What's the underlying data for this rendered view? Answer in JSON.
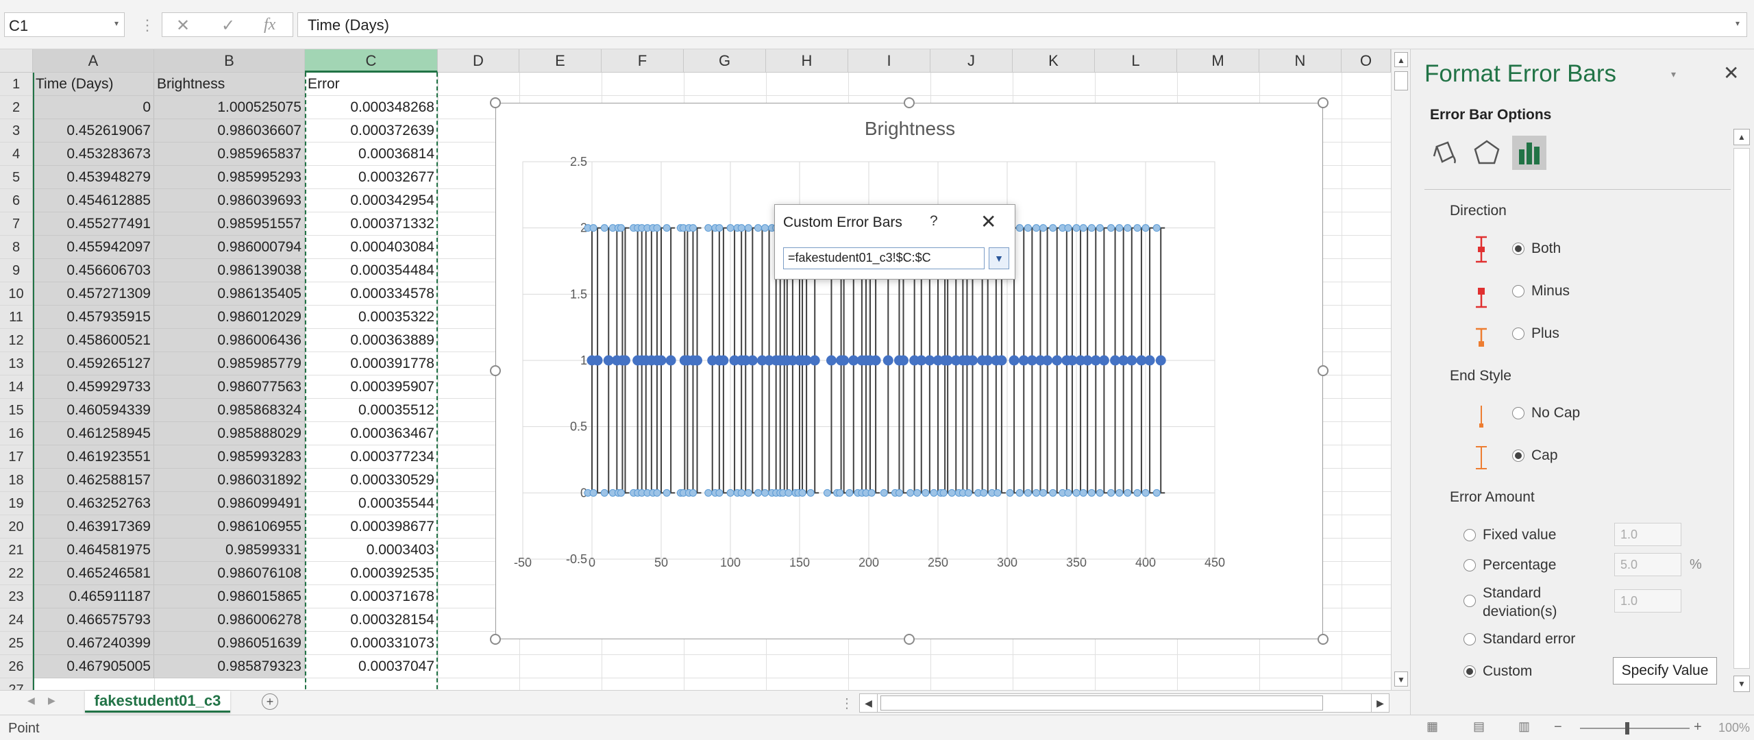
{
  "formula_bar": {
    "name_box": "C1",
    "cancel_icon": "✕",
    "enter_icon": "✓",
    "fx_icon": "fx",
    "formula": "Time (Days)"
  },
  "columns": [
    "A",
    "B",
    "C",
    "D",
    "E",
    "F",
    "G",
    "H",
    "I",
    "J",
    "K",
    "L",
    "M",
    "N",
    "O"
  ],
  "rows": [
    "1",
    "2",
    "3",
    "4",
    "5",
    "6",
    "7",
    "8",
    "9",
    "10",
    "11",
    "12",
    "13",
    "14",
    "15",
    "16",
    "17",
    "18",
    "19",
    "20",
    "21",
    "22",
    "23",
    "24",
    "25",
    "26",
    "27"
  ],
  "headers": {
    "a": "Time (Days)",
    "b": "Brightness",
    "c": "Error"
  },
  "data_rows": [
    [
      "0",
      "1.000525075",
      "0.000348268"
    ],
    [
      "0.452619067",
      "0.986036607",
      "0.000372639"
    ],
    [
      "0.453283673",
      "0.985965837",
      "0.00036814"
    ],
    [
      "0.453948279",
      "0.985995293",
      "0.00032677"
    ],
    [
      "0.454612885",
      "0.986039693",
      "0.000342954"
    ],
    [
      "0.455277491",
      "0.985951557",
      "0.000371332"
    ],
    [
      "0.455942097",
      "0.986000794",
      "0.000403084"
    ],
    [
      "0.456606703",
      "0.986139038",
      "0.000354484"
    ],
    [
      "0.457271309",
      "0.986135405",
      "0.000334578"
    ],
    [
      "0.457935915",
      "0.986012029",
      "0.00035322"
    ],
    [
      "0.458600521",
      "0.986006436",
      "0.000363889"
    ],
    [
      "0.459265127",
      "0.985985779",
      "0.000391778"
    ],
    [
      "0.459929733",
      "0.986077563",
      "0.000395907"
    ],
    [
      "0.460594339",
      "0.985868324",
      "0.00035512"
    ],
    [
      "0.461258945",
      "0.985888029",
      "0.000363467"
    ],
    [
      "0.461923551",
      "0.985993283",
      "0.000377234"
    ],
    [
      "0.462588157",
      "0.986031892",
      "0.000330529"
    ],
    [
      "0.463252763",
      "0.986099491",
      "0.00035544"
    ],
    [
      "0.463917369",
      "0.986106955",
      "0.000398677"
    ],
    [
      "0.464581975",
      "0.98599331",
      "0.0003403"
    ],
    [
      "0.465246581",
      "0.986076108",
      "0.000392535"
    ],
    [
      "0.465911187",
      "0.986015865",
      "0.000371678"
    ],
    [
      "0.466575793",
      "0.986006278",
      "0.000328154"
    ],
    [
      "0.467240399",
      "0.986051639",
      "0.000331073"
    ],
    [
      "0.467905005",
      "0.985879323",
      "0.00037047"
    ]
  ],
  "chart_data": {
    "type": "scatter",
    "title": "Brightness",
    "xlim": [
      -50,
      450
    ],
    "ylim": [
      -0.5,
      2.5
    ],
    "x_ticks": [
      "-50",
      "0",
      "50",
      "100",
      "150",
      "200",
      "250",
      "300",
      "350",
      "400",
      "450"
    ],
    "y_ticks": [
      "-0.5",
      "0",
      "0.5",
      "1",
      "1.5",
      "2",
      "2.5"
    ],
    "grid": true,
    "error_bars": {
      "direction": "both",
      "end_style": "cap",
      "minus": 1,
      "plus": 1
    },
    "x": [
      0,
      4,
      12,
      18,
      22,
      24,
      33,
      36,
      39,
      43,
      47,
      50,
      57,
      67,
      69,
      73,
      76,
      87,
      92,
      95,
      103,
      108,
      111,
      116,
      123,
      128,
      133,
      136,
      139,
      141,
      145,
      150,
      152,
      155,
      161,
      173,
      180,
      182,
      189,
      195,
      198,
      201,
      205,
      214,
      222,
      225,
      233,
      238,
      244,
      250,
      255,
      257,
      263,
      268,
      271,
      275,
      282,
      286,
      292,
      296,
      305,
      312,
      318,
      324,
      329,
      336,
      343,
      347,
      353,
      358,
      364,
      370,
      378,
      384,
      390,
      397,
      403,
      411
    ],
    "y": [
      1,
      1,
      1,
      1,
      1,
      1,
      1,
      1,
      1,
      1,
      1,
      1,
      1,
      1,
      1,
      1,
      1,
      1,
      1,
      1,
      1,
      1,
      1,
      1,
      1,
      1,
      1,
      1,
      1,
      1,
      1,
      1,
      1,
      1,
      1,
      1,
      1,
      1,
      1,
      1,
      1,
      1,
      1,
      1,
      1,
      1,
      1,
      1,
      1,
      1,
      1,
      1,
      1,
      1,
      1,
      1,
      1,
      1,
      1,
      1,
      1,
      1,
      1,
      1,
      1,
      1,
      1,
      1,
      1,
      1,
      1,
      1,
      1,
      1,
      1,
      1,
      1,
      1
    ]
  },
  "dialog": {
    "title": "Custom Error Bars",
    "help": "?",
    "close": "✕",
    "reference": "=fakestudent01_c3!$C:$C",
    "collapse_icon": "▼"
  },
  "sheet_tab": "fakestudent01_c3",
  "add_sheet": "+",
  "pane": {
    "title": "Format Error Bars",
    "close": "✕",
    "options_label": "Error Bar Options",
    "direction_label": "Direction",
    "direction_options": [
      "Both",
      "Minus",
      "Plus"
    ],
    "end_style_label": "End Style",
    "end_style_options": [
      "No Cap",
      "Cap"
    ],
    "error_amount_label": "Error Amount",
    "fixed_value": "Fixed value",
    "fixed_value_input": "1.0",
    "percentage": "Percentage",
    "percentage_input": "5.0",
    "percent_sign": "%",
    "std_dev": "Standard deviation(s)",
    "std_dev_input": "1.0",
    "std_error": "Standard error",
    "custom": "Custom",
    "specify_value": "Specify Value"
  },
  "status": {
    "mode": "Point",
    "zoom": "100%"
  },
  "colors": {
    "accent": "#217346",
    "marker": "#4472c4",
    "error_bar": "#404040",
    "direction_icon_red": "#e03030",
    "direction_icon_orange": "#ed7d31"
  }
}
